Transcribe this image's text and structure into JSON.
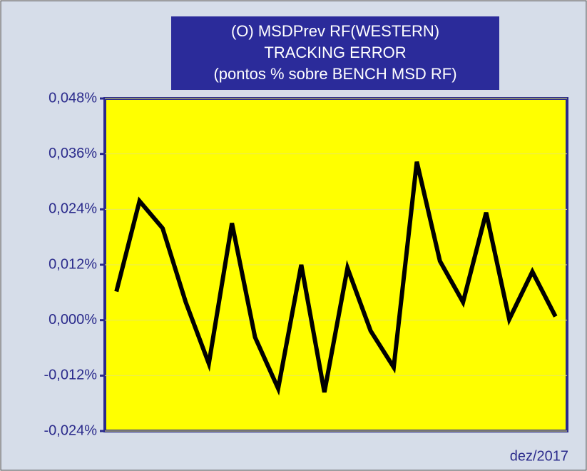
{
  "chart_data": {
    "type": "line",
    "title": [
      "(O) MSDPrev RF(WESTERN)",
      "TRACKING ERROR",
      "(pontos % sobre BENCH MSD RF)"
    ],
    "x_label": "dez/2017",
    "categories": [
      null,
      null,
      null,
      null,
      null,
      null,
      null,
      null,
      null,
      null,
      null,
      null,
      null,
      null,
      null,
      null,
      null,
      null,
      null,
      null
    ],
    "series": [
      {
        "name": "Tracking error",
        "color": "#000000",
        "values": [
          0.0062,
          0.0258,
          0.0199,
          0.0039,
          -0.0094,
          0.021,
          -0.0037,
          -0.0148,
          0.012,
          -0.0156,
          0.0113,
          -0.0023,
          -0.0102,
          0.0343,
          0.0128,
          0.0039,
          0.0233,
          0.0002,
          0.0105,
          0.0008
        ]
      }
    ],
    "ylim": [
      -0.024,
      0.048
    ],
    "yticks": [
      {
        "value": -0.024,
        "label": "-0,024%"
      },
      {
        "value": -0.012,
        "label": "-0,012%"
      },
      {
        "value": 0,
        "label": "0,000%"
      },
      {
        "value": 0.012,
        "label": "0,012%"
      },
      {
        "value": 0.024,
        "label": "0,024%"
      },
      {
        "value": 0.036,
        "label": "0,036%"
      },
      {
        "value": 0.048,
        "label": "0,048%"
      }
    ],
    "grid": true,
    "plot_color": "#ffff00"
  }
}
